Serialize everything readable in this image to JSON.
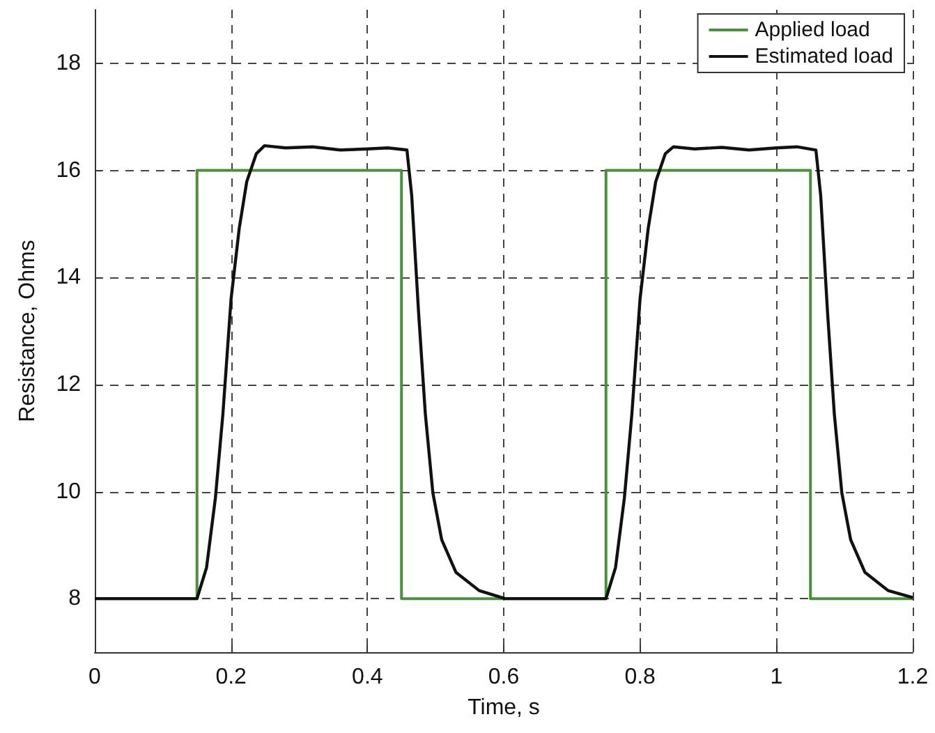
{
  "chart_data": {
    "type": "line",
    "xlabel": "Time, s",
    "ylabel": "Resistance, Ohms",
    "xlim": [
      0,
      1.2
    ],
    "xticks": [
      0,
      0.2,
      0.4,
      0.6,
      0.8,
      1,
      1.2
    ],
    "ylim": [
      7,
      19
    ],
    "yticks": [
      8,
      10,
      12,
      14,
      16,
      18
    ],
    "grid": true,
    "legend": "top right",
    "marker": "none",
    "series": [
      {
        "name": "Applied load",
        "color": "#4a8f3c",
        "type": "step",
        "x": [
          0,
          0.15,
          0.45,
          0.75,
          1.05,
          1.2
        ],
        "values": [
          8,
          16,
          8,
          16,
          8,
          8
        ]
      },
      {
        "name": "Estimated load",
        "color": "#111111",
        "x": [
          0,
          0.1,
          0.15,
          0.164,
          0.177,
          0.188,
          0.2,
          0.212,
          0.223,
          0.237,
          0.249,
          0.28,
          0.32,
          0.36,
          0.4,
          0.43,
          0.458,
          0.465,
          0.475,
          0.485,
          0.496,
          0.509,
          0.53,
          0.564,
          0.602,
          0.7,
          0.75,
          0.764,
          0.777,
          0.788,
          0.8,
          0.812,
          0.823,
          0.837,
          0.849,
          0.88,
          0.92,
          0.96,
          1.0,
          1.03,
          1.058,
          1.065,
          1.075,
          1.085,
          1.096,
          1.109,
          1.13,
          1.164,
          1.2
        ],
        "values": [
          8,
          8,
          8,
          8.58,
          9.88,
          11.45,
          13.6,
          14.92,
          15.79,
          16.31,
          16.46,
          16.42,
          16.44,
          16.38,
          16.4,
          16.42,
          16.38,
          15.53,
          13.36,
          11.45,
          9.98,
          9.1,
          8.49,
          8.15,
          8,
          8,
          8,
          8.58,
          9.88,
          11.45,
          13.6,
          14.92,
          15.79,
          16.31,
          16.44,
          16.4,
          16.43,
          16.38,
          16.42,
          16.44,
          16.38,
          15.53,
          13.36,
          11.45,
          9.98,
          9.1,
          8.49,
          8.15,
          8.02
        ]
      }
    ]
  }
}
